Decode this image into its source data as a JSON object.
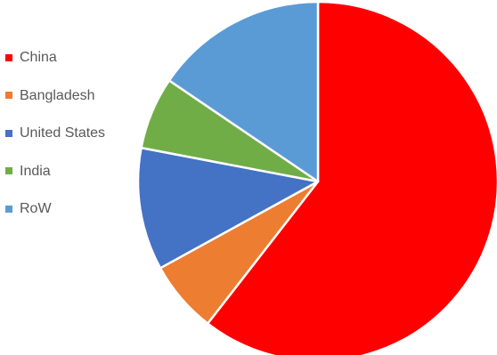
{
  "chart_data": {
    "type": "pie",
    "title": "",
    "legend_position": "left",
    "start_angle_deg": 0,
    "direction": "clockwise",
    "slices": [
      {
        "label": "China",
        "value": 60.5,
        "color": "#ff0000"
      },
      {
        "label": "Bangladesh",
        "value": 6.5,
        "color": "#ed7d31"
      },
      {
        "label": "United States",
        "value": 11,
        "color": "#4472c4"
      },
      {
        "label": "India",
        "value": 6.5,
        "color": "#70ad47"
      },
      {
        "label": "RoW",
        "value": 15.5,
        "color": "#5b9bd5"
      }
    ]
  }
}
